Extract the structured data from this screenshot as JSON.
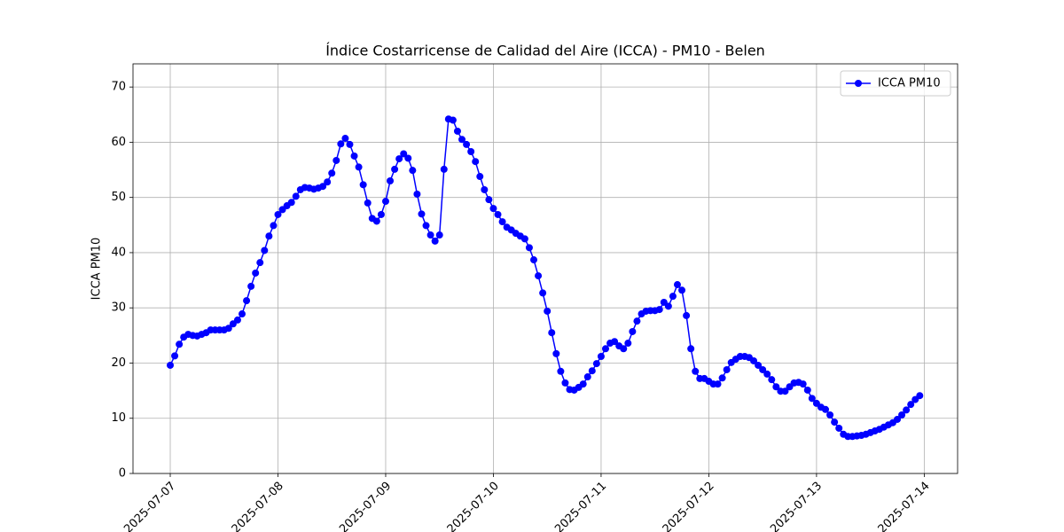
{
  "chart_data": {
    "type": "line",
    "title": "Índice Costarricense de Calidad del Aire (ICCA) - PM10 - Belen",
    "y_label": "ICCA PM10",
    "x": [
      "2025-07-07 00:00",
      "2025-07-07 01:00",
      "2025-07-07 02:00",
      "2025-07-07 03:00",
      "2025-07-07 04:00",
      "2025-07-07 05:00",
      "2025-07-07 06:00",
      "2025-07-07 07:00",
      "2025-07-07 08:00",
      "2025-07-07 09:00",
      "2025-07-07 10:00",
      "2025-07-07 11:00",
      "2025-07-07 12:00",
      "2025-07-07 13:00",
      "2025-07-07 14:00",
      "2025-07-07 15:00",
      "2025-07-07 16:00",
      "2025-07-07 17:00",
      "2025-07-07 18:00",
      "2025-07-07 19:00",
      "2025-07-07 20:00",
      "2025-07-07 21:00",
      "2025-07-07 22:00",
      "2025-07-07 23:00",
      "2025-07-08 00:00",
      "2025-07-08 01:00",
      "2025-07-08 02:00",
      "2025-07-08 03:00",
      "2025-07-08 04:00",
      "2025-07-08 05:00",
      "2025-07-08 06:00",
      "2025-07-08 07:00",
      "2025-07-08 08:00",
      "2025-07-08 09:00",
      "2025-07-08 10:00",
      "2025-07-08 11:00",
      "2025-07-08 12:00",
      "2025-07-08 13:00",
      "2025-07-08 14:00",
      "2025-07-08 15:00",
      "2025-07-08 16:00",
      "2025-07-08 17:00",
      "2025-07-08 18:00",
      "2025-07-08 19:00",
      "2025-07-08 20:00",
      "2025-07-08 21:00",
      "2025-07-08 22:00",
      "2025-07-08 23:00",
      "2025-07-09 00:00",
      "2025-07-09 01:00",
      "2025-07-09 02:00",
      "2025-07-09 03:00",
      "2025-07-09 04:00",
      "2025-07-09 05:00",
      "2025-07-09 06:00",
      "2025-07-09 07:00",
      "2025-07-09 08:00",
      "2025-07-09 09:00",
      "2025-07-09 10:00",
      "2025-07-09 11:00",
      "2025-07-09 12:00",
      "2025-07-09 13:00",
      "2025-07-09 14:00",
      "2025-07-09 15:00",
      "2025-07-09 16:00",
      "2025-07-09 17:00",
      "2025-07-09 18:00",
      "2025-07-09 19:00",
      "2025-07-09 20:00",
      "2025-07-09 21:00",
      "2025-07-09 22:00",
      "2025-07-09 23:00",
      "2025-07-10 00:00",
      "2025-07-10 01:00",
      "2025-07-10 02:00",
      "2025-07-10 03:00",
      "2025-07-10 04:00",
      "2025-07-10 05:00",
      "2025-07-10 06:00",
      "2025-07-10 07:00",
      "2025-07-10 08:00",
      "2025-07-10 09:00",
      "2025-07-10 10:00",
      "2025-07-10 11:00",
      "2025-07-10 12:00",
      "2025-07-10 13:00",
      "2025-07-10 14:00",
      "2025-07-10 15:00",
      "2025-07-10 16:00",
      "2025-07-10 17:00",
      "2025-07-10 18:00",
      "2025-07-10 19:00",
      "2025-07-10 20:00",
      "2025-07-10 21:00",
      "2025-07-10 22:00",
      "2025-07-10 23:00",
      "2025-07-11 00:00",
      "2025-07-11 01:00",
      "2025-07-11 02:00",
      "2025-07-11 03:00",
      "2025-07-11 04:00",
      "2025-07-11 05:00",
      "2025-07-11 06:00",
      "2025-07-11 07:00",
      "2025-07-11 08:00",
      "2025-07-11 09:00",
      "2025-07-11 10:00",
      "2025-07-11 11:00",
      "2025-07-11 12:00",
      "2025-07-11 13:00",
      "2025-07-11 14:00",
      "2025-07-11 15:00",
      "2025-07-11 16:00",
      "2025-07-11 17:00",
      "2025-07-11 18:00",
      "2025-07-11 19:00",
      "2025-07-11 20:00",
      "2025-07-11 21:00",
      "2025-07-11 22:00",
      "2025-07-11 23:00",
      "2025-07-12 00:00",
      "2025-07-12 01:00",
      "2025-07-12 02:00",
      "2025-07-12 03:00",
      "2025-07-12 04:00",
      "2025-07-12 05:00",
      "2025-07-12 06:00",
      "2025-07-12 07:00",
      "2025-07-12 08:00",
      "2025-07-12 09:00",
      "2025-07-12 10:00",
      "2025-07-12 11:00",
      "2025-07-12 12:00",
      "2025-07-12 13:00",
      "2025-07-12 14:00",
      "2025-07-12 15:00",
      "2025-07-12 16:00",
      "2025-07-12 17:00",
      "2025-07-12 18:00",
      "2025-07-12 19:00",
      "2025-07-12 20:00",
      "2025-07-12 21:00",
      "2025-07-12 22:00",
      "2025-07-12 23:00",
      "2025-07-13 00:00",
      "2025-07-13 01:00",
      "2025-07-13 02:00",
      "2025-07-13 03:00",
      "2025-07-13 04:00",
      "2025-07-13 05:00",
      "2025-07-13 06:00",
      "2025-07-13 07:00",
      "2025-07-13 08:00",
      "2025-07-13 09:00",
      "2025-07-13 10:00",
      "2025-07-13 11:00",
      "2025-07-13 12:00",
      "2025-07-13 13:00",
      "2025-07-13 14:00",
      "2025-07-13 15:00",
      "2025-07-13 16:00",
      "2025-07-13 17:00",
      "2025-07-13 18:00",
      "2025-07-13 19:00",
      "2025-07-13 20:00",
      "2025-07-13 21:00",
      "2025-07-13 22:00",
      "2025-07-13 23:00"
    ],
    "series": [
      {
        "name": "ICCA PM10",
        "color": "#0000ff",
        "values": [
          19.6,
          21.3,
          23.4,
          24.7,
          25.2,
          25.0,
          24.9,
          25.2,
          25.5,
          26.0,
          26.0,
          26.0,
          26.0,
          26.3,
          27.1,
          27.8,
          28.9,
          31.3,
          33.9,
          36.3,
          38.2,
          40.4,
          43.0,
          44.9,
          46.9,
          47.8,
          48.5,
          49.1,
          50.2,
          51.4,
          51.8,
          51.7,
          51.5,
          51.7,
          52.0,
          52.8,
          54.4,
          56.7,
          59.7,
          60.7,
          59.6,
          57.5,
          55.5,
          52.3,
          49.0,
          46.2,
          45.7,
          46.9,
          49.3,
          53.0,
          55.1,
          57.0,
          57.9,
          57.1,
          54.9,
          50.6,
          47.0,
          44.9,
          43.2,
          42.1,
          43.2,
          55.1,
          64.2,
          64.0,
          62.0,
          60.5,
          59.6,
          58.3,
          56.5,
          53.8,
          51.4,
          49.6,
          48.0,
          46.9,
          45.6,
          44.6,
          44.1,
          43.5,
          43.0,
          42.5,
          40.9,
          38.7,
          35.8,
          32.7,
          29.4,
          25.5,
          21.7,
          18.5,
          16.4,
          15.2,
          15.1,
          15.6,
          16.2,
          17.5,
          18.6,
          19.9,
          21.2,
          22.6,
          23.6,
          23.9,
          23.1,
          22.6,
          23.6,
          25.7,
          27.6,
          28.9,
          29.4,
          29.5,
          29.5,
          29.7,
          31.0,
          30.3,
          32.1,
          34.2,
          33.2,
          28.6,
          22.6,
          18.5,
          17.2,
          17.2,
          16.7,
          16.2,
          16.2,
          17.3,
          18.8,
          20.1,
          20.7,
          21.2,
          21.2,
          21.0,
          20.4,
          19.6,
          18.8,
          18.0,
          17.0,
          15.7,
          14.9,
          14.9,
          15.7,
          16.4,
          16.5,
          16.2,
          15.1,
          13.6,
          12.7,
          12.0,
          11.6,
          10.6,
          9.3,
          8.2,
          7.1,
          6.7,
          6.7,
          6.8,
          6.9,
          7.1,
          7.4,
          7.7,
          8.0,
          8.4,
          8.8,
          9.2,
          9.8,
          10.6,
          11.5,
          12.5,
          13.4,
          14.1
        ]
      }
    ],
    "xlim": [
      "2025-07-06 15:42",
      "2025-07-14 07:26"
    ],
    "xticks": [
      "2025-07-07",
      "2025-07-08",
      "2025-07-09",
      "2025-07-10",
      "2025-07-11",
      "2025-07-12",
      "2025-07-13",
      "2025-07-14"
    ],
    "ylim": [
      0,
      74.2
    ],
    "yticks": [
      0,
      10,
      20,
      30,
      40,
      50,
      60,
      70
    ],
    "grid": true,
    "legend": "upper right"
  }
}
